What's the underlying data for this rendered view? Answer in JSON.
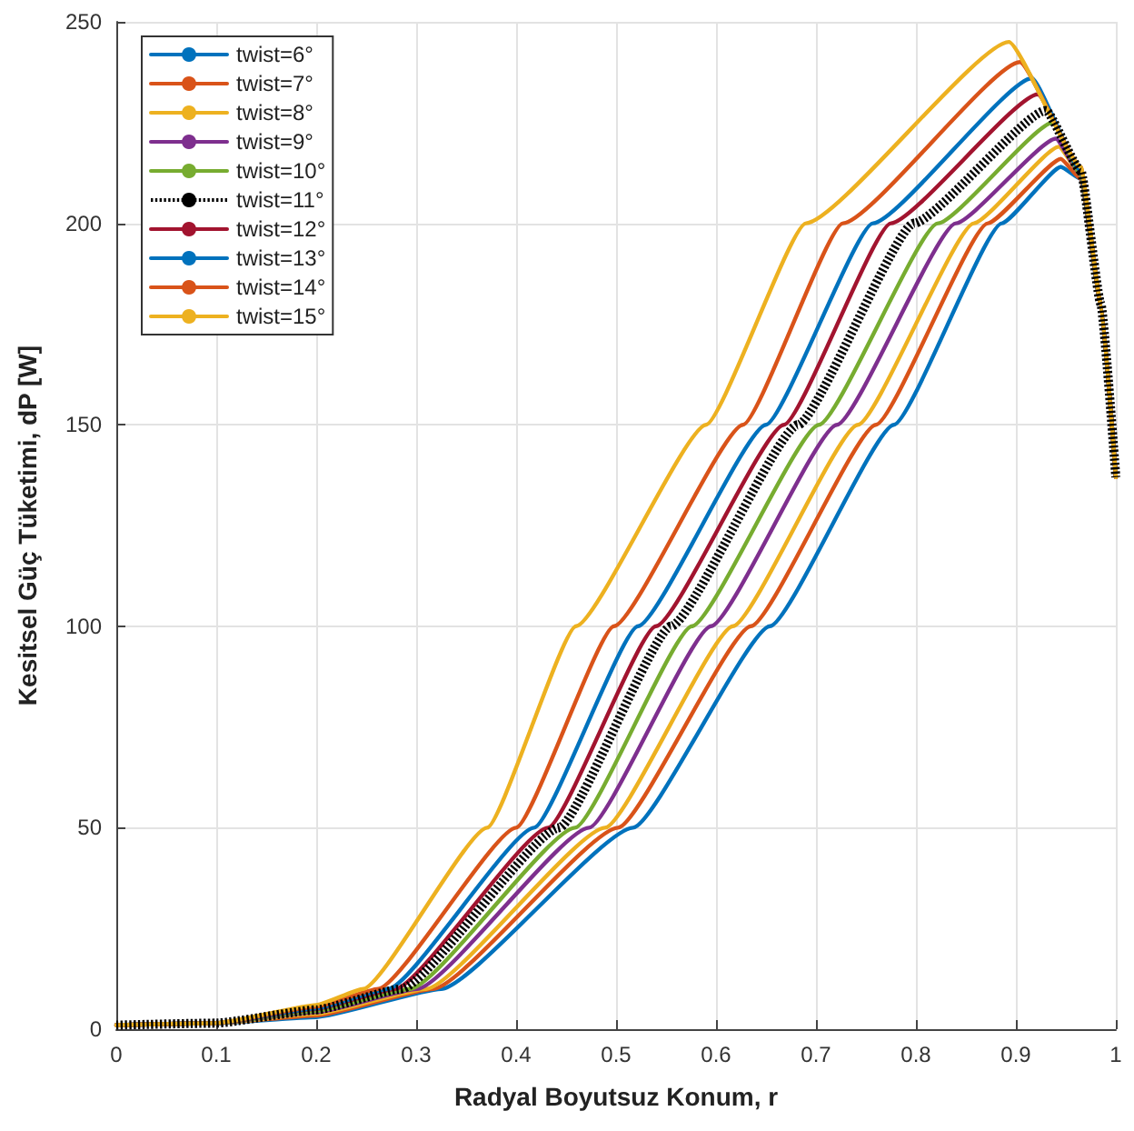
{
  "chart_data": {
    "type": "line",
    "xlabel": "Radyal Boyutsuz Konum, r",
    "ylabel": "Kesitsel Güç Tüketimi, dP [W]",
    "xlim": [
      0,
      1
    ],
    "xticks": [
      0,
      0.1,
      0.2,
      0.3,
      0.4,
      0.5,
      0.6,
      0.7,
      0.8,
      0.9,
      1
    ],
    "ylim": [
      0,
      250
    ],
    "yticks": [
      0,
      50,
      100,
      150,
      200,
      250
    ],
    "grid": true,
    "legend": "top left",
    "marker": "none",
    "series": [
      {
        "name": "twist=6°",
        "color": "#0072bd",
        "line_style": "solid",
        "x": [
          0,
          0.1,
          0.2,
          0.325,
          0.517,
          0.654,
          0.778,
          0.886,
          0.945,
          0.965,
          0.985,
          1
        ],
        "values": [
          1,
          1.5,
          3,
          10,
          50,
          100,
          150,
          200,
          214,
          211,
          180,
          137
        ]
      },
      {
        "name": "twist=7°",
        "color": "#d95319",
        "line_style": "solid",
        "x": [
          0,
          0.1,
          0.2,
          0.317,
          0.502,
          0.635,
          0.76,
          0.872,
          0.945,
          0.965,
          0.985,
          1
        ],
        "values": [
          1,
          1.5,
          3.4,
          10,
          50,
          100,
          150,
          200,
          216,
          211,
          180,
          137
        ]
      },
      {
        "name": "twist=8°",
        "color": "#edb120",
        "line_style": "solid",
        "x": [
          0,
          0.1,
          0.2,
          0.31,
          0.489,
          0.617,
          0.742,
          0.858,
          0.943,
          0.965,
          0.985,
          1
        ],
        "values": [
          1,
          1.5,
          3.8,
          10,
          50,
          100,
          150,
          200,
          219,
          212,
          180,
          137
        ]
      },
      {
        "name": "twist=9°",
        "color": "#7e2f8e",
        "line_style": "solid",
        "x": [
          0,
          0.1,
          0.2,
          0.301,
          0.473,
          0.595,
          0.721,
          0.84,
          0.94,
          0.965,
          0.985,
          1
        ],
        "values": [
          1,
          1.5,
          4.2,
          10,
          50,
          100,
          150,
          200,
          221,
          212,
          180,
          137
        ]
      },
      {
        "name": "twist=10°",
        "color": "#77ac30",
        "line_style": "solid",
        "x": [
          0,
          0.1,
          0.2,
          0.294,
          0.459,
          0.576,
          0.703,
          0.822,
          0.937,
          0.965,
          0.985,
          1
        ],
        "values": [
          1,
          1.5,
          4.5,
          10,
          50,
          100,
          150,
          200,
          225,
          212,
          180,
          137
        ]
      },
      {
        "name": "twist=11°",
        "color": "#000000",
        "line_style": "dotted",
        "x": [
          0,
          0.1,
          0.2,
          0.285,
          0.443,
          0.555,
          0.682,
          0.798,
          0.93,
          0.965,
          0.985,
          1
        ],
        "values": [
          1,
          1.5,
          4.8,
          10,
          50,
          100,
          150,
          200,
          228,
          213,
          180,
          137
        ]
      },
      {
        "name": "twist=12°",
        "color": "#a2142f",
        "line_style": "solid",
        "x": [
          0,
          0.1,
          0.2,
          0.279,
          0.432,
          0.54,
          0.668,
          0.775,
          0.922,
          0.965,
          0.985,
          1
        ],
        "values": [
          1,
          1.5,
          5,
          10,
          50,
          100,
          150,
          200,
          232,
          213,
          180,
          137
        ]
      },
      {
        "name": "twist=13°",
        "color": "#0072bd",
        "line_style": "solid",
        "x": [
          0,
          0.1,
          0.2,
          0.272,
          0.418,
          0.522,
          0.65,
          0.757,
          0.916,
          0.965,
          0.985,
          1
        ],
        "values": [
          1,
          1.5,
          5.2,
          10,
          50,
          100,
          150,
          200,
          236,
          213,
          180,
          137
        ]
      },
      {
        "name": "twist=14°",
        "color": "#d95319",
        "line_style": "solid",
        "x": [
          0,
          0.1,
          0.2,
          0.262,
          0.4,
          0.498,
          0.627,
          0.727,
          0.904,
          0.965,
          0.985,
          1
        ],
        "values": [
          1,
          1.5,
          5.6,
          10,
          50,
          100,
          150,
          200,
          240,
          214,
          180,
          137
        ]
      },
      {
        "name": "twist=15°",
        "color": "#edb120",
        "line_style": "solid",
        "x": [
          0,
          0.1,
          0.2,
          0.247,
          0.371,
          0.46,
          0.59,
          0.69,
          0.893,
          0.965,
          0.985,
          1
        ],
        "values": [
          1,
          1.5,
          6,
          10,
          50,
          100,
          150,
          200,
          245,
          214,
          180,
          137
        ]
      }
    ]
  }
}
